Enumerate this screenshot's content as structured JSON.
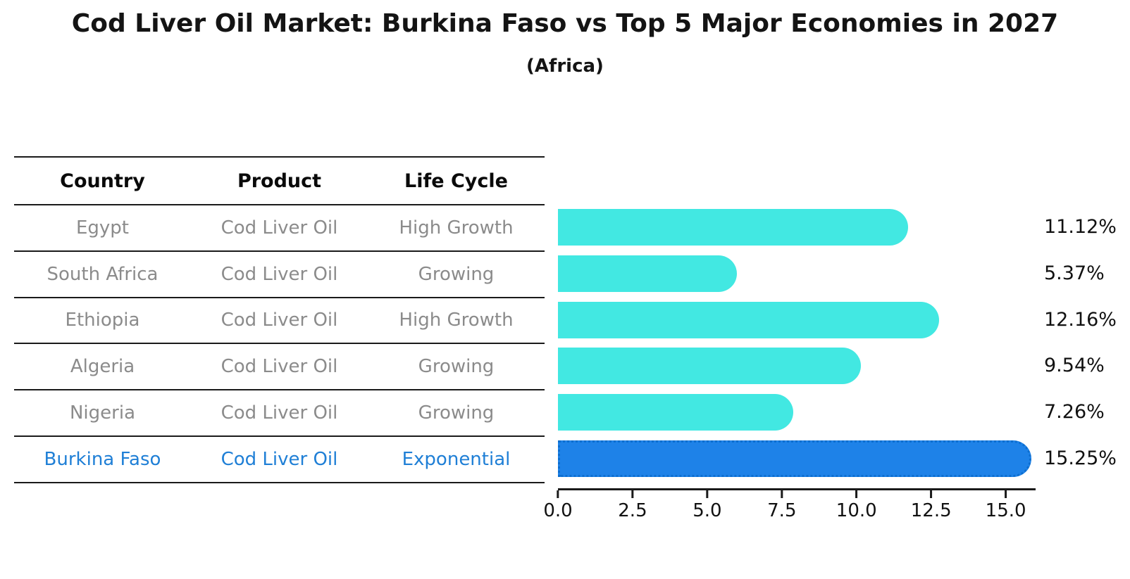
{
  "chart_data": {
    "type": "bar",
    "orientation": "horizontal",
    "title": "Cod Liver Oil Market: Burkina Faso vs Top 5 Major Economies in 2027",
    "subtitle": "(Africa)",
    "categories": [
      "Egypt",
      "South Africa",
      "Ethiopia",
      "Algeria",
      "Nigeria",
      "Burkina Faso"
    ],
    "values": [
      11.12,
      5.37,
      12.16,
      9.54,
      7.26,
      15.25
    ],
    "value_labels": [
      "11.12%",
      "5.37%",
      "12.16%",
      "9.54%",
      "7.26%",
      "15.25%"
    ],
    "xlim": [
      0,
      16
    ],
    "x_ticks": [
      0,
      2.5,
      5,
      7.5,
      10,
      12.5,
      15
    ],
    "x_tick_labels": [
      "0.0",
      "2.5",
      "5.0",
      "7.5",
      "10.0",
      "12.5",
      "15.0"
    ],
    "bar_color": "#42e8e2",
    "highlight_color": "#1e82e8",
    "highlight_border_color": "#0d6ecf",
    "highlight_index": 5,
    "grid": false,
    "legend": null
  },
  "table": {
    "headers": [
      "Country",
      "Product",
      "Life Cycle"
    ],
    "rows": [
      {
        "country": "Egypt",
        "product": "Cod Liver Oil",
        "life_cycle": "High Growth",
        "highlighted": false
      },
      {
        "country": "South Africa",
        "product": "Cod Liver Oil",
        "life_cycle": "Growing",
        "highlighted": false
      },
      {
        "country": "Ethiopia",
        "product": "Cod Liver Oil",
        "life_cycle": "High Growth",
        "highlighted": false
      },
      {
        "country": "Algeria",
        "product": "Cod Liver Oil",
        "life_cycle": "Growing",
        "highlighted": false
      },
      {
        "country": "Nigeria",
        "product": "Cod Liver Oil",
        "life_cycle": "Growing",
        "highlighted": false
      },
      {
        "country": "Burkina Faso",
        "product": "Cod Liver Oil",
        "life_cycle": "Exponential",
        "highlighted": true
      }
    ]
  },
  "colors": {
    "table_header_text": "#0a0a0a",
    "table_row_text": "#8b8b8b",
    "highlight_text": "#1f7fd6",
    "axis": "#1a1a1a",
    "background": "#ffffff"
  }
}
